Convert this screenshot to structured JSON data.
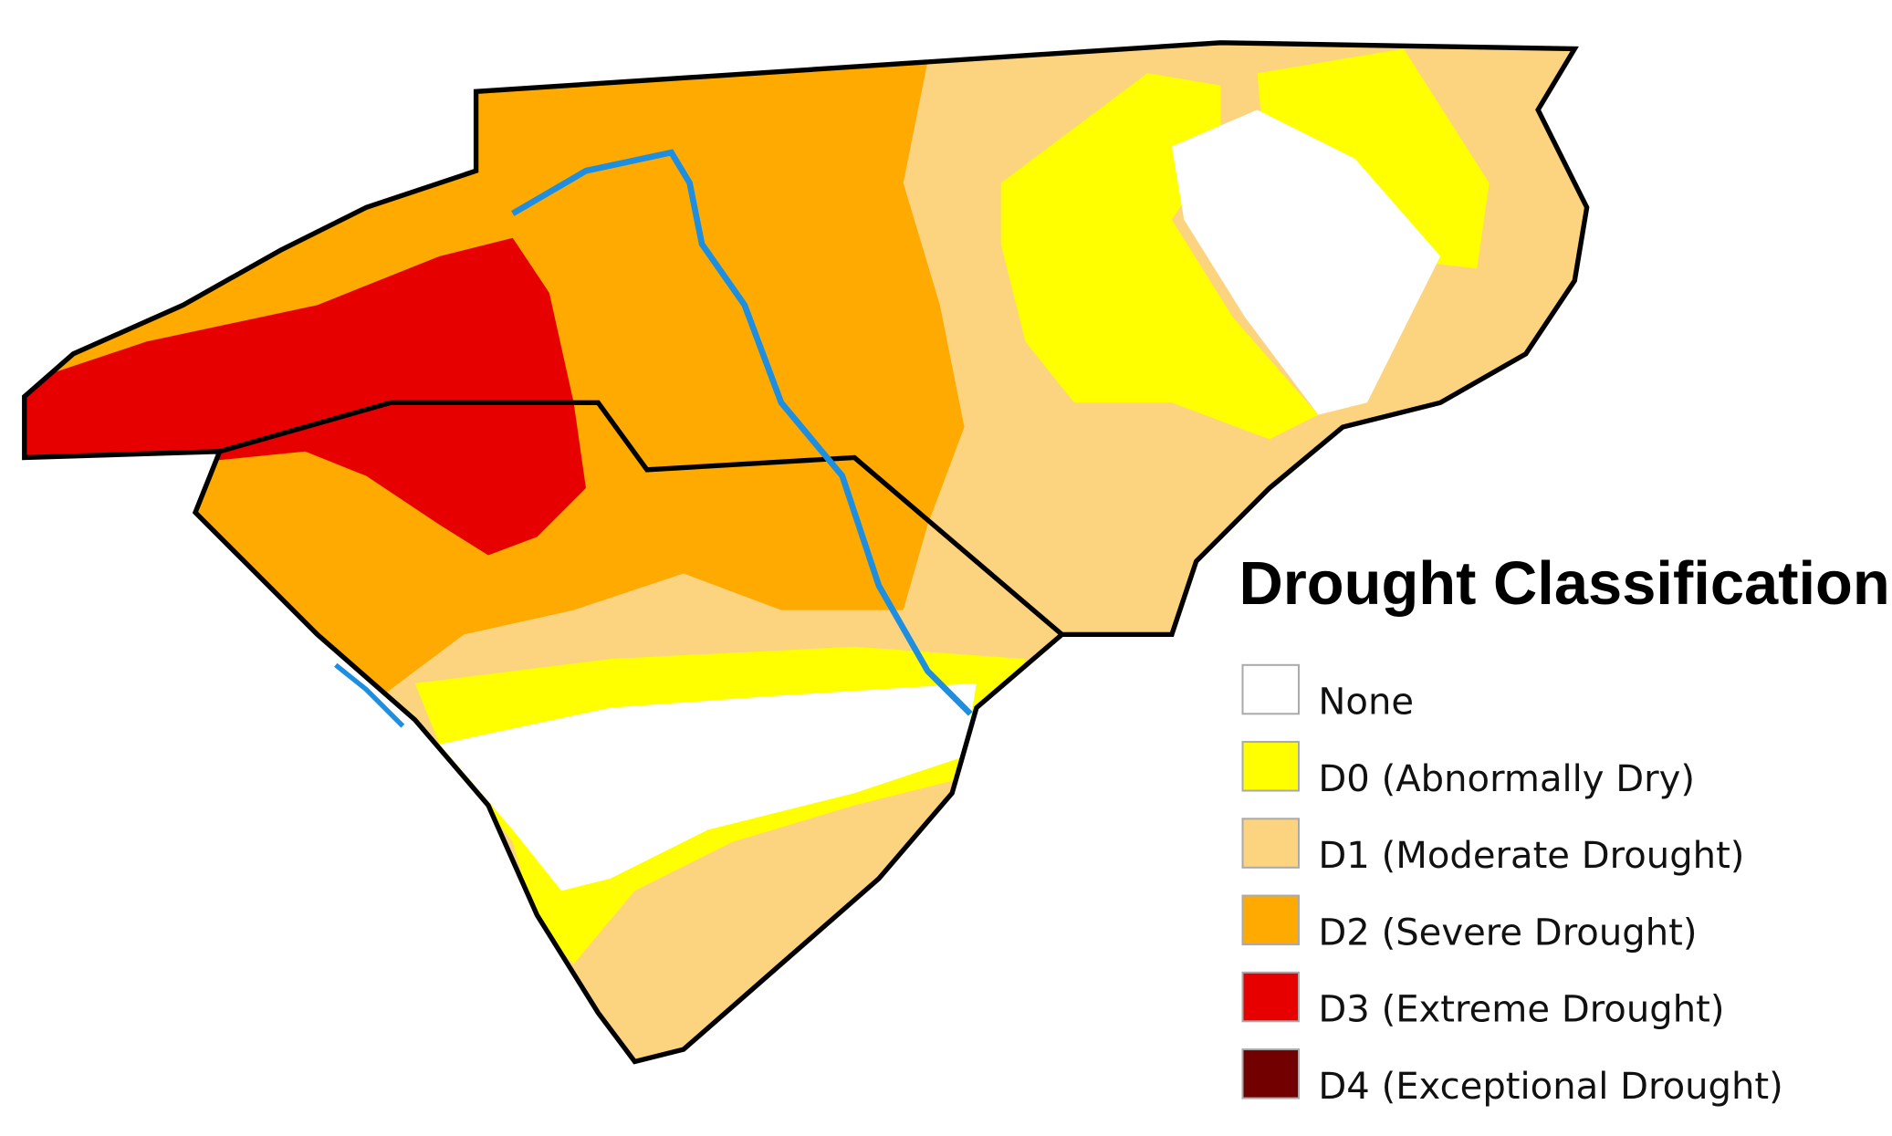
{
  "legend": {
    "title": "Drought Classification",
    "items": [
      {
        "label": "None",
        "color": "#ffffff"
      },
      {
        "label": "D0 (Abnormally Dry)",
        "color": "#ffff00"
      },
      {
        "label": "D1 (Moderate Drought)",
        "color": "#fcd37f"
      },
      {
        "label": "D2 (Severe Drought)",
        "color": "#ffaa00"
      },
      {
        "label": "D3 (Extreme Drought)",
        "color": "#e60000"
      },
      {
        "label": "D4 (Exceptional Drought)",
        "color": "#730000"
      }
    ]
  }
}
